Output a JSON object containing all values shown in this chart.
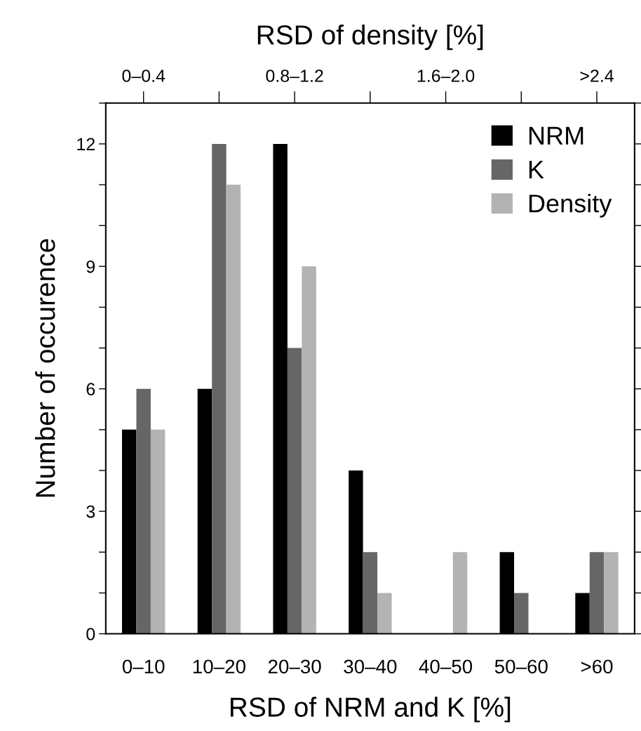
{
  "chart_data": {
    "type": "bar",
    "xlabel": "RSD of NRM and K [%]",
    "ylabel": "Number of occurence",
    "x2label": "RSD of density [%]",
    "categories": [
      "0–10",
      "10–20",
      "20–30",
      "30–40",
      "40–50",
      "50–60",
      ">60"
    ],
    "series": [
      {
        "name": "NRM",
        "color": "#000000",
        "values": [
          5,
          6,
          12,
          4,
          0,
          2,
          1
        ]
      },
      {
        "name": "K",
        "color": "#666666",
        "values": [
          6,
          12,
          7,
          2,
          0,
          1,
          2
        ]
      },
      {
        "name": "Density",
        "color": "#b3b3b3",
        "values": [
          5,
          11,
          9,
          1,
          2,
          0,
          2
        ]
      }
    ],
    "ylim": [
      0,
      13
    ],
    "yticks": [
      0,
      {
        "value": 1,
        "label": null
      },
      {
        "value": 2,
        "label": null
      },
      3,
      {
        "value": 4,
        "label": null
      },
      {
        "value": 5,
        "label": null
      },
      6,
      {
        "value": 7,
        "label": null
      },
      {
        "value": 8,
        "label": null
      },
      9,
      {
        "value": 10,
        "label": null
      },
      {
        "value": 11,
        "label": null
      },
      12,
      {
        "value": 13,
        "label": null
      }
    ],
    "annotations": [
      {
        "text": "0–0.4",
        "x": "0–10"
      },
      {
        "text": "0.8–1.2",
        "x": "20–30"
      },
      {
        "text": "1.6–2.0",
        "x": "40–50"
      },
      {
        "text": ">2.4",
        "x": ">60"
      }
    ],
    "grid": false,
    "legend": "top right"
  }
}
